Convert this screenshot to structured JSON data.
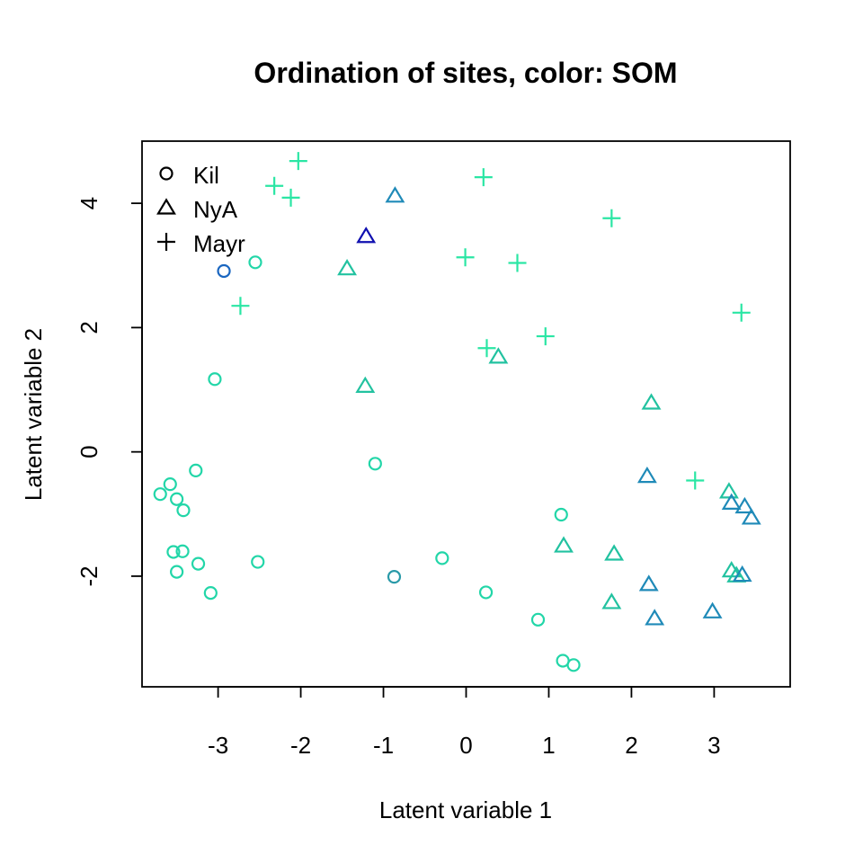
{
  "chart_data": {
    "type": "scatter",
    "title": "Ordination of sites, color: SOM",
    "xlabel": "Latent variable 1",
    "ylabel": "Latent variable 2",
    "xlim": [
      -3.92,
      3.92
    ],
    "ylim": [
      -3.78,
      5.0
    ],
    "xticks": [
      -3,
      -2,
      -1,
      0,
      1,
      2,
      3
    ],
    "yticks": [
      -2,
      0,
      2,
      4
    ],
    "grid": false,
    "legend_position": "top-left",
    "color_mapping": "SOM",
    "series": [
      {
        "name": "Kil",
        "marker": "circle",
        "points": [
          {
            "x": -2.93,
            "y": 2.91,
            "color": "#1a66c0"
          },
          {
            "x": -2.55,
            "y": 3.05,
            "color": "#22d6a8"
          },
          {
            "x": -3.04,
            "y": 1.17,
            "color": "#22d6a8"
          },
          {
            "x": -3.7,
            "y": -0.68,
            "color": "#22d6a8"
          },
          {
            "x": -3.58,
            "y": -0.52,
            "color": "#22d6a8"
          },
          {
            "x": -3.5,
            "y": -0.76,
            "color": "#22d6a8"
          },
          {
            "x": -3.42,
            "y": -0.94,
            "color": "#22d6a8"
          },
          {
            "x": -3.27,
            "y": -0.3,
            "color": "#22d6a8"
          },
          {
            "x": -3.54,
            "y": -1.61,
            "color": "#22d6a8"
          },
          {
            "x": -3.43,
            "y": -1.6,
            "color": "#22d6a8"
          },
          {
            "x": -3.5,
            "y": -1.93,
            "color": "#22d6a8"
          },
          {
            "x": -3.24,
            "y": -1.8,
            "color": "#22d6a8"
          },
          {
            "x": -3.09,
            "y": -2.27,
            "color": "#22d6a8"
          },
          {
            "x": -2.52,
            "y": -1.77,
            "color": "#22d6a8"
          },
          {
            "x": -1.1,
            "y": -0.19,
            "color": "#22d6a8"
          },
          {
            "x": -0.87,
            "y": -2.01,
            "color": "#2a9aa8"
          },
          {
            "x": -0.29,
            "y": -1.71,
            "color": "#22d6a8"
          },
          {
            "x": 0.24,
            "y": -2.26,
            "color": "#22d6a8"
          },
          {
            "x": 1.15,
            "y": -1.01,
            "color": "#22d6a8"
          },
          {
            "x": 0.87,
            "y": -2.7,
            "color": "#22d6a8"
          },
          {
            "x": 1.17,
            "y": -3.36,
            "color": "#22d6a8"
          },
          {
            "x": 1.3,
            "y": -3.43,
            "color": "#22d6a8"
          }
        ]
      },
      {
        "name": "NyA",
        "marker": "triangle",
        "points": [
          {
            "x": -0.86,
            "y": 4.12,
            "color": "#1f8ab8"
          },
          {
            "x": -1.21,
            "y": 3.47,
            "color": "#1010b0"
          },
          {
            "x": -1.44,
            "y": 2.95,
            "color": "#22c2a0"
          },
          {
            "x": 0.39,
            "y": 1.53,
            "color": "#22c2a0"
          },
          {
            "x": -1.22,
            "y": 1.06,
            "color": "#22c2a0"
          },
          {
            "x": 2.24,
            "y": 0.79,
            "color": "#22c2a0"
          },
          {
            "x": 2.19,
            "y": -0.39,
            "color": "#1f8ab8"
          },
          {
            "x": 3.18,
            "y": -0.64,
            "color": "#22c2a0"
          },
          {
            "x": 3.21,
            "y": -0.82,
            "color": "#1f8ab8"
          },
          {
            "x": 3.37,
            "y": -0.88,
            "color": "#1f8ab8"
          },
          {
            "x": 3.45,
            "y": -1.06,
            "color": "#1f8ab8"
          },
          {
            "x": 1.18,
            "y": -1.51,
            "color": "#22c2a0"
          },
          {
            "x": 1.79,
            "y": -1.64,
            "color": "#22c2a0"
          },
          {
            "x": 3.21,
            "y": -1.91,
            "color": "#22c2a0"
          },
          {
            "x": 3.27,
            "y": -1.99,
            "color": "#22c2a0"
          },
          {
            "x": 3.34,
            "y": -1.98,
            "color": "#1f8ab8"
          },
          {
            "x": 2.21,
            "y": -2.13,
            "color": "#1f8ab8"
          },
          {
            "x": 1.76,
            "y": -2.42,
            "color": "#22c2a0"
          },
          {
            "x": 2.28,
            "y": -2.68,
            "color": "#1f8ab8"
          },
          {
            "x": 2.98,
            "y": -2.57,
            "color": "#1f8ab8"
          }
        ]
      },
      {
        "name": "Mayr",
        "marker": "plus",
        "points": [
          {
            "x": -2.03,
            "y": 4.68,
            "color": "#2ae6a4"
          },
          {
            "x": -2.32,
            "y": 4.28,
            "color": "#2ae6a4"
          },
          {
            "x": -2.12,
            "y": 4.09,
            "color": "#2ae6a4"
          },
          {
            "x": 0.21,
            "y": 4.42,
            "color": "#2ae6a4"
          },
          {
            "x": 1.76,
            "y": 3.76,
            "color": "#2ae6a4"
          },
          {
            "x": -0.01,
            "y": 3.13,
            "color": "#2ae6a4"
          },
          {
            "x": 0.62,
            "y": 3.04,
            "color": "#2ae6a4"
          },
          {
            "x": -2.73,
            "y": 2.35,
            "color": "#2ae6a4"
          },
          {
            "x": 3.33,
            "y": 2.24,
            "color": "#2ae6a4"
          },
          {
            "x": 0.25,
            "y": 1.67,
            "color": "#2ae6a4"
          },
          {
            "x": 0.96,
            "y": 1.86,
            "color": "#2ae6a4"
          },
          {
            "x": 2.77,
            "y": -0.46,
            "color": "#2ae6a4"
          }
        ]
      }
    ]
  }
}
